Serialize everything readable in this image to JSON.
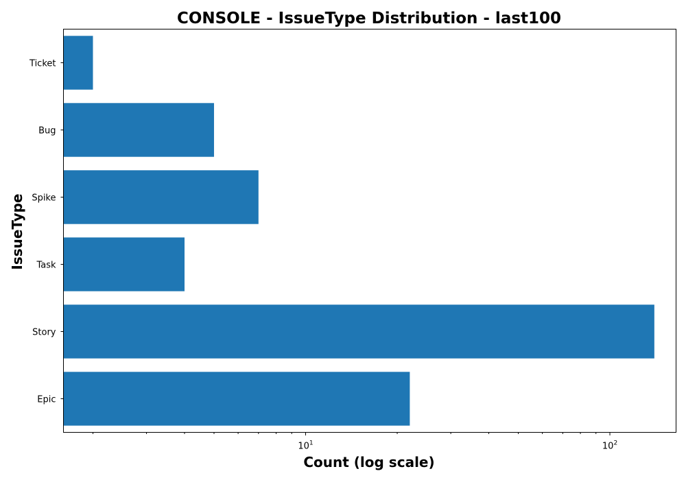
{
  "chart_data": {
    "type": "bar",
    "orientation": "horizontal",
    "title": "CONSOLE - IssueType Distribution - last100",
    "xlabel": "Count (log scale)",
    "ylabel": "IssueType",
    "x_scale": "log",
    "xlim": [
      1.6,
      165
    ],
    "x_major_ticks": [
      {
        "value": 10,
        "base": "10",
        "exp": "1"
      },
      {
        "value": 100,
        "base": "10",
        "exp": "2"
      }
    ],
    "categories": [
      "Epic",
      "Story",
      "Task",
      "Spike",
      "Bug",
      "Ticket"
    ],
    "values": [
      22,
      140,
      4,
      7,
      5,
      2
    ],
    "bar_color": "#1f77b4",
    "grid": false,
    "legend": false
  }
}
